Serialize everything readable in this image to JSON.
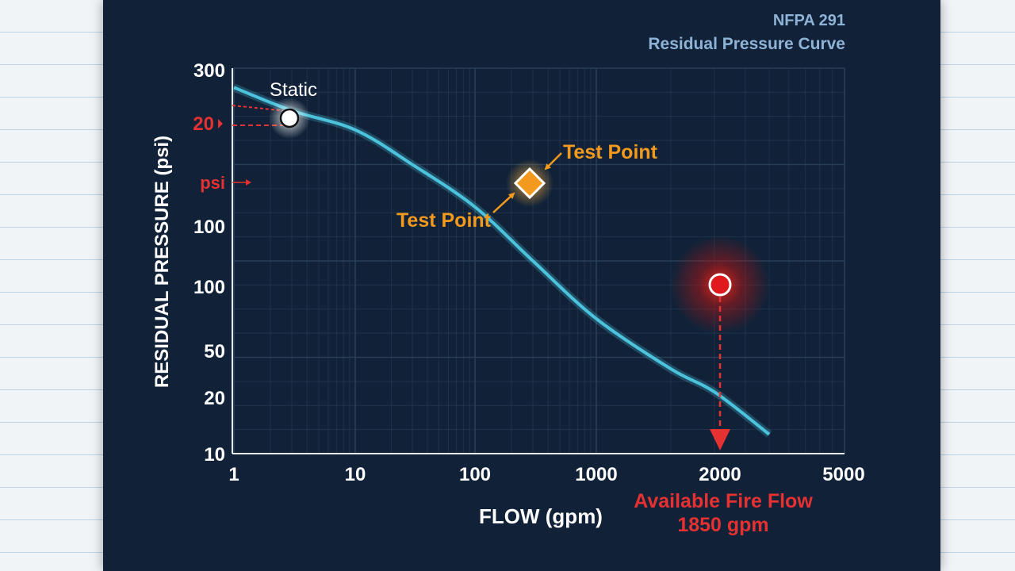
{
  "header": {
    "line1": "NFPA 291",
    "line2": "Residual Pressure Curve"
  },
  "chart_data": {
    "type": "line",
    "title": "",
    "xlabel": "FLOW (gpm)",
    "ylabel": "RESIDUAL PRESSURE (psi)",
    "x_ticks": [
      "1",
      "10",
      "100",
      "1000",
      "2000",
      "5000"
    ],
    "y_ticks": [
      "300",
      "20",
      "psi",
      "100",
      "100",
      "50",
      "20",
      "10"
    ],
    "grid": true,
    "series": [
      {
        "name": "",
        "x": [
          1,
          3,
          10,
          30,
          100,
          300,
          1000,
          2000,
          3000,
          5000
        ],
        "y_axis_position": [
          0.95,
          0.89,
          0.84,
          0.75,
          0.64,
          0.5,
          0.35,
          0.22,
          0.16,
          0.05
        ]
      }
    ],
    "points": [
      {
        "label": "Static",
        "x": 3,
        "y_axis_position": 0.885,
        "marker": "circle",
        "color": "#ffffff"
      },
      {
        "label": "Test Point",
        "x": 300,
        "y_axis_position": 0.71,
        "marker": "diamond",
        "color": "#f39a1e"
      },
      {
        "label": "",
        "x": 2000,
        "y_axis_position": 0.43,
        "marker": "circle",
        "color": "#e0191c"
      }
    ],
    "annotations": [
      {
        "text": "Test Point",
        "color": "#f39a1e"
      },
      {
        "text": "Test Point",
        "color": "#f39a1e"
      },
      {
        "text": "Available Fire Flow",
        "color": "#e53131"
      },
      {
        "text": "1850 gpm",
        "color": "#e53131"
      }
    ],
    "highlight_ticks": [
      "20",
      "psi"
    ]
  },
  "colors": {
    "background": "#112238",
    "curve": "#4cc3dc",
    "grid": "#2b4058",
    "accent_orange": "#f39a1e",
    "accent_red": "#e53131"
  }
}
